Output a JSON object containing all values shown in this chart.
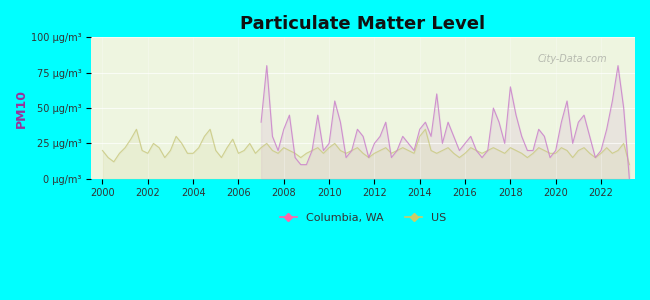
{
  "title": "Particulate Matter Level",
  "ylabel": "PM10",
  "background_color": "#00FFFF",
  "plot_bg_color_top": "#e8f5e9",
  "plot_bg_color_bottom": "#f5ffe8",
  "watermark": "City-Data.com",
  "legend_labels": [
    "Columbia, WA",
    "US"
  ],
  "columbia_color": "#cc88cc",
  "us_color": "#cccc88",
  "columbia_marker_color": "#ff66aa",
  "us_marker_color": "#cccc66",
  "ylim": [
    0,
    100
  ],
  "yticks": [
    0,
    25,
    50,
    75,
    100
  ],
  "ytick_labels": [
    "0 μg/m³",
    "25 μg/m³",
    "50 μg/m³",
    "75 μg/m³",
    "100 μg/m³"
  ],
  "us_data": {
    "years": [
      2000,
      2000.25,
      2000.5,
      2000.75,
      2001,
      2001.25,
      2001.5,
      2001.75,
      2002,
      2002.25,
      2002.5,
      2002.75,
      2003,
      2003.25,
      2003.5,
      2003.75,
      2004,
      2004.25,
      2004.5,
      2004.75,
      2005,
      2005.25,
      2005.5,
      2005.75,
      2006,
      2006.25,
      2006.5,
      2006.75,
      2007,
      2007.25,
      2007.5,
      2007.75,
      2008,
      2008.25,
      2008.5,
      2008.75,
      2009,
      2009.25,
      2009.5,
      2009.75,
      2010,
      2010.25,
      2010.5,
      2010.75,
      2011,
      2011.25,
      2011.5,
      2011.75,
      2012,
      2012.25,
      2012.5,
      2012.75,
      2013,
      2013.25,
      2013.5,
      2013.75,
      2014,
      2014.25,
      2014.5,
      2014.75,
      2015,
      2015.25,
      2015.5,
      2015.75,
      2016,
      2016.25,
      2016.5,
      2016.75,
      2017,
      2017.25,
      2017.5,
      2017.75,
      2018,
      2018.25,
      2018.5,
      2018.75,
      2019,
      2019.25,
      2019.5,
      2019.75,
      2020,
      2020.25,
      2020.5,
      2020.75,
      2021,
      2021.25,
      2021.5,
      2021.75,
      2022,
      2022.25,
      2022.5,
      2022.75,
      2023,
      2023.25
    ],
    "values": [
      20,
      15,
      12,
      18,
      22,
      28,
      35,
      20,
      18,
      25,
      22,
      15,
      20,
      30,
      25,
      18,
      18,
      22,
      30,
      35,
      20,
      15,
      22,
      28,
      18,
      20,
      25,
      18,
      22,
      25,
      20,
      18,
      22,
      20,
      18,
      15,
      18,
      20,
      22,
      18,
      22,
      25,
      20,
      18,
      20,
      22,
      18,
      15,
      18,
      20,
      22,
      18,
      20,
      22,
      20,
      18,
      30,
      35,
      20,
      18,
      20,
      22,
      18,
      15,
      18,
      22,
      20,
      18,
      20,
      22,
      20,
      18,
      22,
      20,
      18,
      15,
      18,
      22,
      20,
      18,
      18,
      22,
      20,
      15,
      20,
      22,
      18,
      15,
      18,
      22,
      18,
      20,
      25,
      10
    ]
  },
  "columbia_data": {
    "years": [
      2007,
      2007.25,
      2007.5,
      2007.75,
      2008,
      2008.25,
      2008.5,
      2008.75,
      2009,
      2009.25,
      2009.5,
      2009.75,
      2010,
      2010.25,
      2010.5,
      2010.75,
      2011,
      2011.25,
      2011.5,
      2011.75,
      2012,
      2012.25,
      2012.5,
      2012.75,
      2013,
      2013.25,
      2013.5,
      2013.75,
      2014,
      2014.25,
      2014.5,
      2014.75,
      2015,
      2015.25,
      2015.5,
      2015.75,
      2016,
      2016.25,
      2016.5,
      2016.75,
      2017,
      2017.25,
      2017.5,
      2017.75,
      2018,
      2018.25,
      2018.5,
      2018.75,
      2019,
      2019.25,
      2019.5,
      2019.75,
      2020,
      2020.25,
      2020.5,
      2020.75,
      2021,
      2021.25,
      2021.5,
      2021.75,
      2022,
      2022.25,
      2022.5,
      2022.75,
      2023,
      2023.25
    ],
    "values": [
      40,
      80,
      30,
      20,
      35,
      45,
      15,
      10,
      10,
      20,
      45,
      20,
      25,
      55,
      40,
      15,
      20,
      35,
      30,
      15,
      25,
      30,
      40,
      15,
      20,
      30,
      25,
      20,
      35,
      40,
      30,
      60,
      25,
      40,
      30,
      20,
      25,
      30,
      20,
      15,
      20,
      50,
      40,
      25,
      65,
      45,
      30,
      20,
      20,
      35,
      30,
      15,
      20,
      40,
      55,
      25,
      40,
      45,
      30,
      15,
      20,
      35,
      55,
      80,
      50,
      0
    ]
  }
}
